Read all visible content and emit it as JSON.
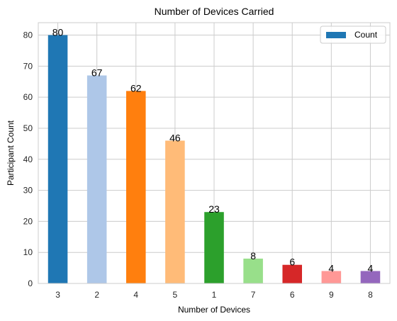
{
  "chart_data": {
    "type": "bar",
    "title": "Number of Devices Carried",
    "xlabel": "Number of Devices",
    "ylabel": "Participant Count",
    "categories": [
      "3",
      "2",
      "4",
      "5",
      "1",
      "7",
      "6",
      "9",
      "8"
    ],
    "values": [
      80,
      67,
      62,
      46,
      23,
      8,
      6,
      4,
      4
    ],
    "colors": [
      "#1f77b4",
      "#aec7e8",
      "#ff7f0e",
      "#ffbb78",
      "#2ca02c",
      "#98df8a",
      "#d62728",
      "#ff9896",
      "#9467bd"
    ],
    "ylim": [
      0,
      84
    ],
    "yticks": [
      0,
      10,
      20,
      30,
      40,
      50,
      60,
      70,
      80
    ],
    "grid": true,
    "legend": {
      "position": "top-right",
      "entries": [
        {
          "label": "Count",
          "color": "#1f77b4"
        }
      ]
    }
  }
}
